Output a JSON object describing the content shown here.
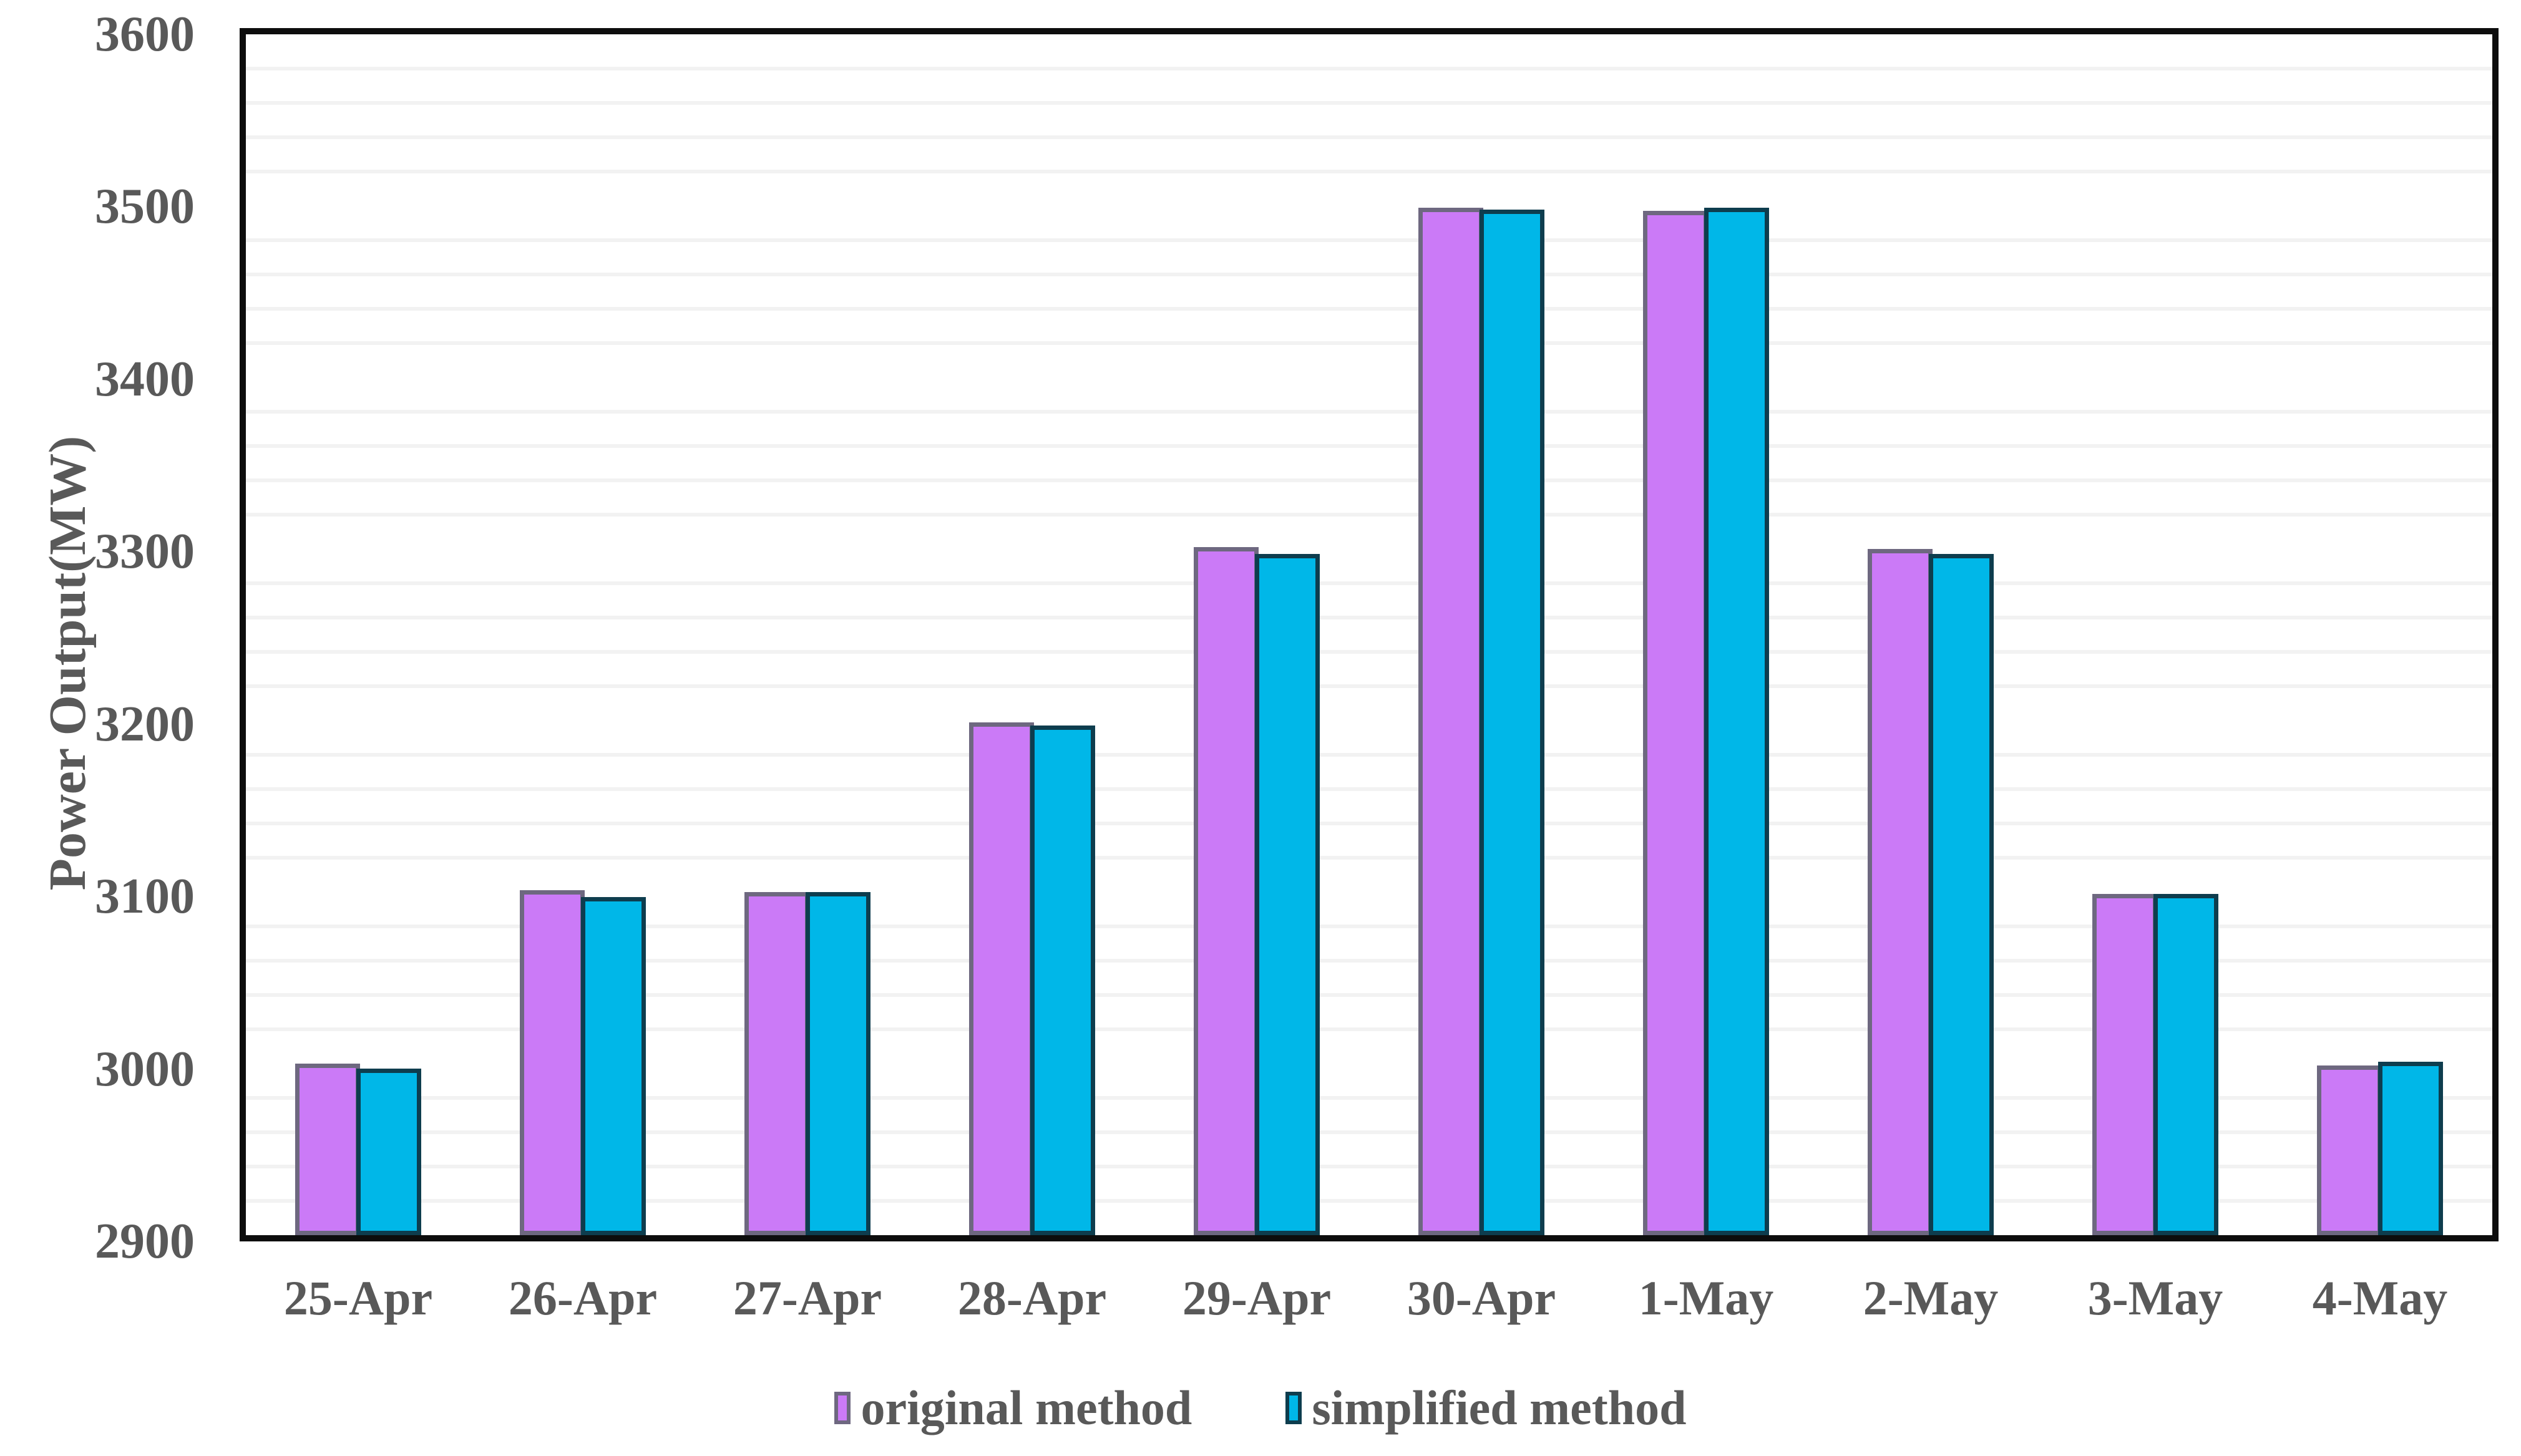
{
  "chart_data": {
    "type": "bar",
    "title": "",
    "xlabel": "",
    "ylabel": "Power Output(MW)",
    "categories": [
      "25-Apr",
      "26-Apr",
      "27-Apr",
      "28-Apr",
      "29-Apr",
      "30-Apr",
      "1-May",
      "2-May",
      "3-May",
      "4-May"
    ],
    "series": [
      {
        "name": "original method",
        "fill": "#cb7af7",
        "border": "#6e6880",
        "values": [
          3000,
          3101,
          3100,
          3199,
          3301,
          3499,
          3497,
          3300,
          3099,
          2999
        ]
      },
      {
        "name": "simplified method",
        "fill": "#00b7e8",
        "border": "#0e3d4e",
        "values": [
          2997,
          3097,
          3100,
          3197,
          3297,
          3498,
          3499,
          3297,
          3099,
          3001
        ]
      }
    ],
    "ylim": [
      2900,
      3600
    ],
    "ytick_step": 100,
    "ytick_labels": [
      "2900",
      "3000",
      "3100",
      "3200",
      "3300",
      "3400",
      "3500",
      "3600"
    ],
    "minor_grid_step": 20,
    "grid": "minor-horizontal-only-majors-hidden",
    "legend_position": "bottom-center",
    "axis_frame": "full-box-black",
    "colors": {
      "gridline": "#f2f2f2",
      "axis": "#0d0d0d",
      "text": "#595959",
      "background": "#ffffff"
    }
  }
}
